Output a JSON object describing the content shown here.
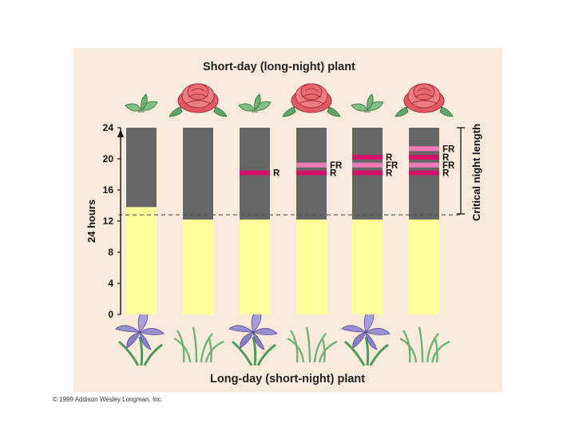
{
  "title_top": "Short-day (long-night) plant",
  "title_bottom": "Long-day (short-night) plant",
  "copyright": "© 1999 Addison Wesley Longman, Inc.",
  "axis": {
    "ylabel": "24 hours",
    "ticks": [
      0,
      4,
      8,
      12,
      16,
      20,
      24
    ],
    "ylim": [
      0,
      24
    ]
  },
  "critical_night_label": "Critical night length",
  "critical_night_boundary_hours": 12.8,
  "colors": {
    "light": "#ffff99",
    "dark": "#666666",
    "red_flash": "#d4116a",
    "far_red_flash": "#f07ab8",
    "dashed_line": "#555555",
    "rose": "#e86b72",
    "iris": "#9b8fd0",
    "leaf": "#5fa56a"
  },
  "bars": [
    {
      "light_hours": 13.8,
      "flashes": [],
      "short_day_plant": "leaves",
      "long_day_plant": "iris-flower"
    },
    {
      "light_hours": 12.2,
      "flashes": [],
      "short_day_plant": "rose-flower",
      "long_day_plant": "grass-leaves"
    },
    {
      "light_hours": 12.2,
      "flashes": [
        {
          "type": "R",
          "hour": 18.2
        }
      ],
      "short_day_plant": "leaves",
      "long_day_plant": "iris-flower"
    },
    {
      "light_hours": 12.2,
      "flashes": [
        {
          "type": "R",
          "hour": 18.2
        },
        {
          "type": "FR",
          "hour": 19.2
        }
      ],
      "short_day_plant": "rose-flower",
      "long_day_plant": "grass-leaves"
    },
    {
      "light_hours": 12.2,
      "flashes": [
        {
          "type": "R",
          "hour": 18.2
        },
        {
          "type": "FR",
          "hour": 19.2
        },
        {
          "type": "R",
          "hour": 20.2
        }
      ],
      "short_day_plant": "leaves",
      "long_day_plant": "iris-flower"
    },
    {
      "light_hours": 12.2,
      "flashes": [
        {
          "type": "R",
          "hour": 18.2
        },
        {
          "type": "FR",
          "hour": 19.2
        },
        {
          "type": "R",
          "hour": 20.2
        },
        {
          "type": "FR",
          "hour": 21.3
        }
      ],
      "short_day_plant": "rose-flower",
      "long_day_plant": "grass-leaves"
    }
  ]
}
